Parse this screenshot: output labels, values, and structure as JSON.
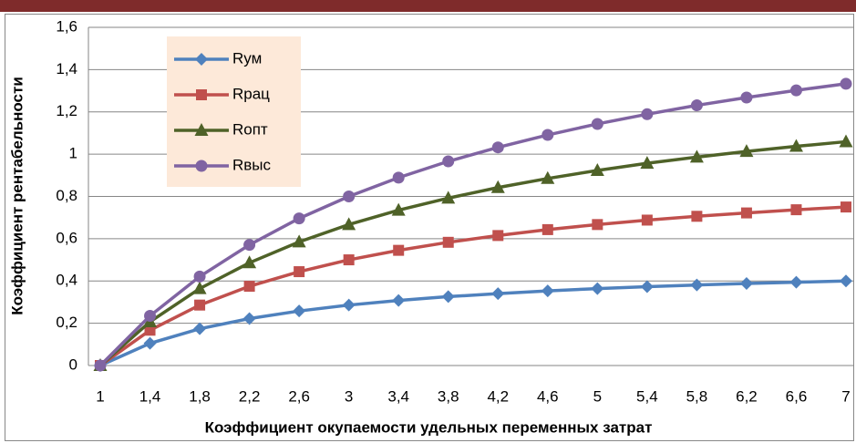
{
  "chart_data": {
    "type": "line",
    "x_label": "Коэффициент окупаемости удельных переменных затрат",
    "y_label": "Коэффициент рентабельности",
    "categories": [
      "1",
      "1,4",
      "1,8",
      "2,2",
      "2,6",
      "3",
      "3,4",
      "3,8",
      "4,2",
      "4,6",
      "5",
      "5,4",
      "5,8",
      "6,2",
      "6,6",
      "7"
    ],
    "series": [
      {
        "name": "Rум",
        "color": "#4f81bd",
        "marker": "diamond",
        "values": [
          0,
          0.105,
          0.174,
          0.222,
          0.258,
          0.286,
          0.308,
          0.326,
          0.34,
          0.353,
          0.364,
          0.373,
          0.381,
          0.388,
          0.394,
          0.4
        ]
      },
      {
        "name": "Rрац",
        "color": "#c0504d",
        "marker": "square",
        "values": [
          0,
          0.167,
          0.286,
          0.375,
          0.444,
          0.5,
          0.545,
          0.583,
          0.615,
          0.643,
          0.667,
          0.688,
          0.706,
          0.722,
          0.737,
          0.75
        ]
      },
      {
        "name": "Rопт",
        "color": "#4f6228",
        "marker": "triangle",
        "values": [
          0,
          0.207,
          0.364,
          0.486,
          0.585,
          0.667,
          0.735,
          0.792,
          0.842,
          0.885,
          0.923,
          0.957,
          0.986,
          1.013,
          1.037,
          1.059
        ]
      },
      {
        "name": "Rвыс",
        "color": "#8064a2",
        "marker": "circle",
        "values": [
          0,
          0.235,
          0.421,
          0.571,
          0.696,
          0.8,
          0.889,
          0.966,
          1.032,
          1.091,
          1.143,
          1.189,
          1.231,
          1.268,
          1.302,
          1.333
        ]
      }
    ],
    "ylim": [
      0,
      1.6
    ],
    "yticks": [
      0,
      {
        "value": 0.2,
        "label": "0,2"
      },
      {
        "value": 0.4,
        "label": "0,4"
      },
      {
        "value": 0.6,
        "label": "0,6"
      },
      {
        "value": 0.8,
        "label": "0,8"
      },
      1,
      {
        "value": 1.2,
        "label": "1,2"
      },
      {
        "value": 1.4,
        "label": "1,4"
      },
      {
        "value": 1.6,
        "label": "1,6"
      }
    ],
    "grid": true,
    "legend": "upper left"
  }
}
